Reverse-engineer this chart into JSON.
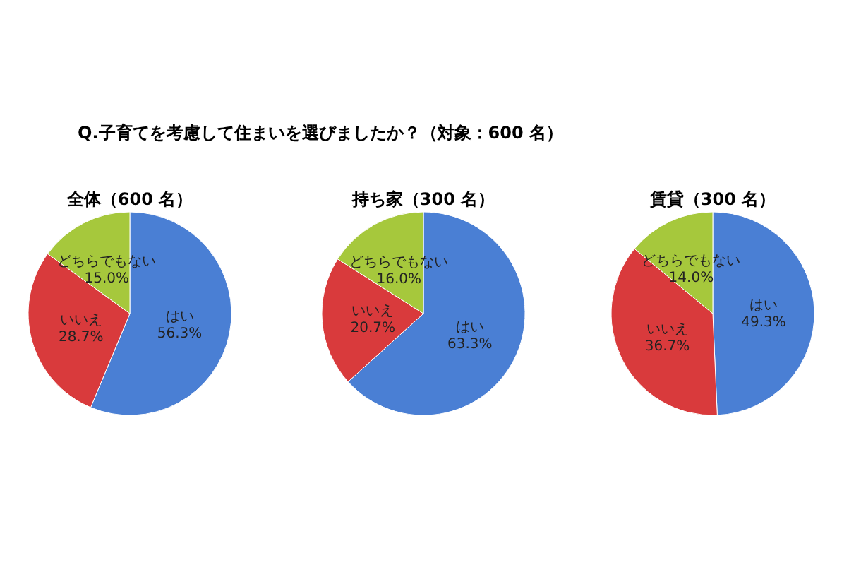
{
  "chart_data": [
    {
      "type": "pie",
      "title": "全体（600 名）",
      "annotations": [
        "Q.子育てを考慮して住まいを選びましたか？（対象：600 名）"
      ],
      "categories": [
        "はい",
        "いいえ",
        "どちらでもない"
      ],
      "values": [
        56.3,
        28.7,
        15.0
      ],
      "value_labels": [
        "56.3%",
        "28.7%",
        "15.0%"
      ],
      "colors": [
        "#4a7fd4",
        "#d93a3c",
        "#a6c83c"
      ]
    },
    {
      "type": "pie",
      "title": "持ち家（300 名）",
      "categories": [
        "はい",
        "いいえ",
        "どちらでもない"
      ],
      "values": [
        63.3,
        20.7,
        16.0
      ],
      "value_labels": [
        "63.3%",
        "20.7%",
        "16.0%"
      ],
      "colors": [
        "#4a7fd4",
        "#d93a3c",
        "#a6c83c"
      ]
    },
    {
      "type": "pie",
      "title": "賃貸（300 名）",
      "categories": [
        "はい",
        "いいえ",
        "どちらでもない"
      ],
      "values": [
        49.3,
        36.7,
        14.0
      ],
      "value_labels": [
        "49.3%",
        "36.7%",
        "14.0%"
      ],
      "colors": [
        "#4a7fd4",
        "#d93a3c",
        "#a6c83c"
      ]
    }
  ]
}
